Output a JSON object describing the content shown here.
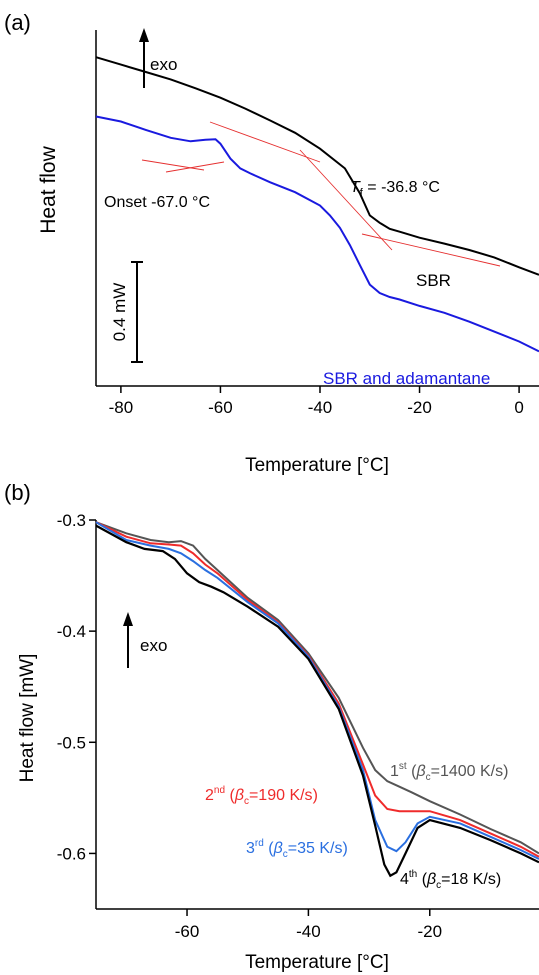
{
  "chart_data": [
    {
      "panel_label": "(a)",
      "type": "line",
      "xlabel": "Temperature [°C]",
      "ylabel": "Heat flow",
      "xlim": [
        -85,
        4
      ],
      "x_ticks": [
        -80,
        -60,
        -40,
        -20,
        0
      ],
      "y_ticks_shown": false,
      "annotations": {
        "exo": "exo",
        "onset": "Onset -67.0 °C",
        "tf_symbol": "T",
        "tf_sub": "f",
        "tf_value": " = -36.8 °C",
        "scale_bar": "0.4 mW"
      },
      "series": [
        {
          "name": "SBR",
          "color": "#000000",
          "x": [
            -85,
            -80,
            -75,
            -70,
            -65,
            -60,
            -55,
            -50,
            -45,
            -40,
            -35,
            -32,
            -30,
            -28,
            -26,
            -24,
            -20,
            -15,
            -10,
            -5,
            0,
            4
          ],
          "y": [
            1.025,
            1.01,
            0.995,
            0.98,
            0.962,
            0.943,
            0.921,
            0.897,
            0.872,
            0.84,
            0.8,
            0.75,
            0.705,
            0.69,
            0.678,
            0.672,
            0.66,
            0.648,
            0.635,
            0.62,
            0.6,
            0.585
          ]
        },
        {
          "name": "SBR and adamantane",
          "color": "#1a1adf",
          "x": [
            -85,
            -80,
            -75,
            -70,
            -66,
            -63,
            -61,
            -60,
            -58,
            -56,
            -54,
            -50,
            -45,
            -40,
            -38,
            -36,
            -34,
            -32,
            -30,
            -28,
            -26,
            -24,
            -20,
            -15,
            -10,
            -5,
            0,
            4
          ],
          "y": [
            0.905,
            0.895,
            0.878,
            0.862,
            0.855,
            0.858,
            0.859,
            0.85,
            0.82,
            0.8,
            0.79,
            0.772,
            0.752,
            0.725,
            0.705,
            0.68,
            0.645,
            0.605,
            0.565,
            0.548,
            0.54,
            0.535,
            0.522,
            0.508,
            0.49,
            0.47,
            0.45,
            0.43
          ]
        }
      ]
    },
    {
      "panel_label": "(b)",
      "type": "line",
      "xlabel": "Temperature [°C]",
      "ylabel": "Heat flow [mW]",
      "xlim": [
        -75,
        -2
      ],
      "ylim": [
        -0.65,
        -0.3
      ],
      "x_ticks": [
        -60,
        -40,
        -20
      ],
      "y_ticks": [
        -0.3,
        -0.4,
        -0.5,
        -0.6
      ],
      "annotations": {
        "exo": "exo"
      },
      "series": [
        {
          "ord": "1",
          "sup": "st",
          "beta": "=1400 K/s",
          "color": "#555555",
          "x": [
            -75,
            -70,
            -66,
            -63,
            -61,
            -59,
            -57,
            -55,
            -50,
            -45,
            -40,
            -35,
            -31,
            -29,
            -27,
            -25,
            -23,
            -20,
            -15,
            -10,
            -5,
            -2
          ],
          "y": [
            -0.302,
            -0.312,
            -0.318,
            -0.32,
            -0.319,
            -0.323,
            -0.335,
            -0.345,
            -0.37,
            -0.39,
            -0.42,
            -0.46,
            -0.505,
            -0.525,
            -0.535,
            -0.54,
            -0.545,
            -0.553,
            -0.565,
            -0.578,
            -0.59,
            -0.6
          ]
        },
        {
          "ord": "2",
          "sup": "nd",
          "beta": "=190 K/s",
          "color": "#ef2b2b",
          "x": [
            -75,
            -70,
            -66,
            -63,
            -61,
            -59,
            -57,
            -55,
            -50,
            -45,
            -40,
            -35,
            -31,
            -29,
            -27,
            -25,
            -23,
            -20,
            -15,
            -10,
            -5,
            -2
          ],
          "y": [
            -0.302,
            -0.315,
            -0.321,
            -0.322,
            -0.323,
            -0.33,
            -0.34,
            -0.348,
            -0.372,
            -0.392,
            -0.422,
            -0.465,
            -0.52,
            -0.548,
            -0.56,
            -0.562,
            -0.562,
            -0.562,
            -0.57,
            -0.582,
            -0.594,
            -0.603
          ]
        },
        {
          "ord": "3",
          "sup": "rd",
          "beta": "=35 K/s",
          "color": "#2a6fe0",
          "x": [
            -75,
            -70,
            -66,
            -63,
            -61,
            -59,
            -57,
            -55,
            -50,
            -45,
            -40,
            -35,
            -31,
            -29,
            -27,
            -25.5,
            -24,
            -22,
            -20,
            -15,
            -10,
            -5,
            -2
          ],
          "y": [
            -0.302,
            -0.318,
            -0.323,
            -0.326,
            -0.33,
            -0.337,
            -0.345,
            -0.352,
            -0.374,
            -0.393,
            -0.423,
            -0.468,
            -0.525,
            -0.57,
            -0.594,
            -0.598,
            -0.59,
            -0.573,
            -0.567,
            -0.573,
            -0.585,
            -0.597,
            -0.605
          ]
        },
        {
          "ord": "4",
          "sup": "th",
          "beta": "=18 K/s",
          "color": "#000000",
          "x": [
            -75,
            -70,
            -67,
            -64,
            -62,
            -60,
            -58,
            -56,
            -54,
            -50,
            -45,
            -40,
            -35,
            -31,
            -29,
            -27.5,
            -26.5,
            -25.5,
            -24,
            -22,
            -20,
            -15,
            -10,
            -5,
            -2
          ],
          "y": [
            -0.305,
            -0.32,
            -0.326,
            -0.328,
            -0.335,
            -0.348,
            -0.356,
            -0.36,
            -0.365,
            -0.378,
            -0.396,
            -0.425,
            -0.47,
            -0.53,
            -0.575,
            -0.61,
            -0.62,
            -0.617,
            -0.6,
            -0.577,
            -0.57,
            -0.577,
            -0.588,
            -0.6,
            -0.608
          ]
        }
      ]
    }
  ]
}
